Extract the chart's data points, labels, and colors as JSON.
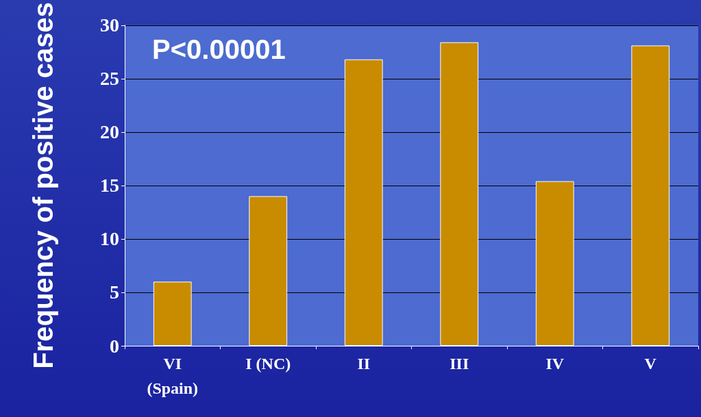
{
  "chart_data": {
    "type": "bar",
    "categories": [
      "VI\n(Spain)",
      "I (NC)",
      "II",
      "III",
      "IV",
      "V"
    ],
    "values": [
      6,
      14,
      26.8,
      28.4,
      15.4,
      28.1
    ],
    "color": "#c98c00",
    "ylabel": "Frequency of positive cases",
    "ylim": [
      0,
      30
    ],
    "yticks": [
      0,
      5,
      10,
      15,
      20,
      25,
      30
    ],
    "grid": "y",
    "annotations": [
      "P<0.00001"
    ]
  }
}
